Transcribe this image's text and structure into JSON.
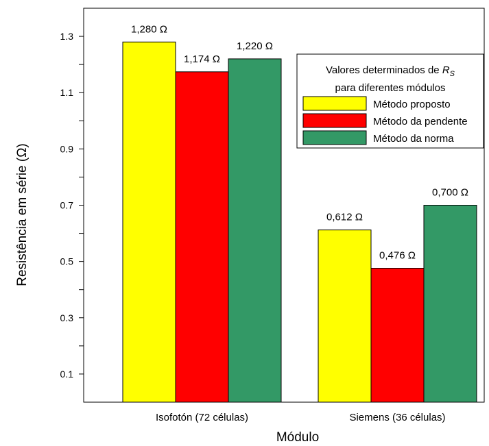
{
  "chart_data": {
    "type": "bar",
    "categories": [
      "Isofotón (72 células)",
      "Siemens (36 células)"
    ],
    "series": [
      {
        "name": "Método proposto",
        "color": "#ffff00",
        "values": [
          1.28,
          0.612
        ],
        "labels": [
          "1,280 Ω",
          "0,612 Ω"
        ]
      },
      {
        "name": "Método da pendente",
        "color": "#ff0000",
        "values": [
          1.174,
          0.476
        ],
        "labels": [
          "1,174 Ω",
          "0,476 Ω"
        ]
      },
      {
        "name": "Método da norma",
        "color": "#339966",
        "values": [
          1.22,
          0.7
        ],
        "labels": [
          "1,220 Ω",
          "0,700 Ω"
        ]
      }
    ],
    "xlabel": "Módulo",
    "ylabel": "Resistência em série (Ω)",
    "ylim": [
      0,
      1.4
    ],
    "yticks": [
      0.1,
      0.3,
      0.5,
      0.7,
      0.9,
      1.1,
      1.3
    ],
    "ytick_labels": [
      "0.1",
      "0.3",
      "0.5",
      "0.7",
      "0.9",
      "1.1",
      "1.3"
    ],
    "grid": false,
    "legend": {
      "title_line1": "Valores determinados de ",
      "title_var": "R",
      "title_sub": "S",
      "title_line2": "para diferentes módulos",
      "placement": "top-right"
    }
  }
}
